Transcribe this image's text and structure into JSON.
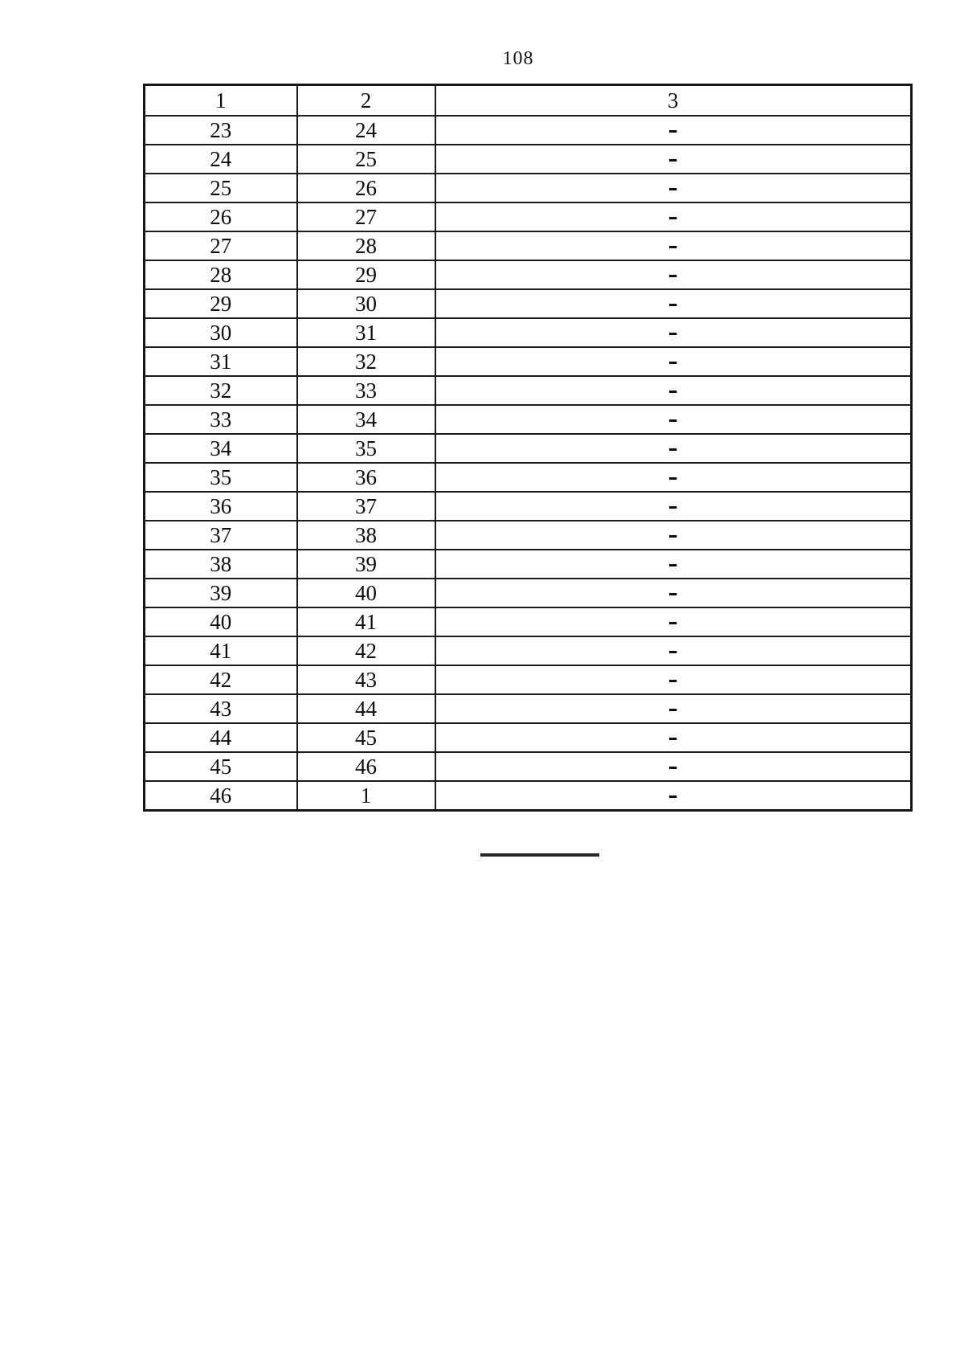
{
  "page": {
    "number": "108"
  },
  "table": {
    "headers": [
      "1",
      "2",
      "3"
    ],
    "rows": [
      [
        "23",
        "24",
        "–"
      ],
      [
        "24",
        "25",
        "–"
      ],
      [
        "25",
        "26",
        "–"
      ],
      [
        "26",
        "27",
        "–"
      ],
      [
        "27",
        "28",
        "–"
      ],
      [
        "28",
        "29",
        "–"
      ],
      [
        "29",
        "30",
        "–"
      ],
      [
        "30",
        "31",
        "–"
      ],
      [
        "31",
        "32",
        "–"
      ],
      [
        "32",
        "33",
        "–"
      ],
      [
        "33",
        "34",
        "–"
      ],
      [
        "34",
        "35",
        "–"
      ],
      [
        "35",
        "36",
        "–"
      ],
      [
        "36",
        "37",
        "–"
      ],
      [
        "37",
        "38",
        "–"
      ],
      [
        "38",
        "39",
        "–"
      ],
      [
        "39",
        "40",
        "–"
      ],
      [
        "40",
        "41",
        "–"
      ],
      [
        "41",
        "42",
        "–"
      ],
      [
        "42",
        "43",
        "–"
      ],
      [
        "43",
        "44",
        "–"
      ],
      [
        "44",
        "45",
        "–"
      ],
      [
        "45",
        "46",
        "–"
      ],
      [
        "46",
        "1",
        "–"
      ]
    ]
  },
  "colors": {
    "background": "#ffffff",
    "text": "#0d0d0d",
    "border": "#1b1b1b"
  }
}
